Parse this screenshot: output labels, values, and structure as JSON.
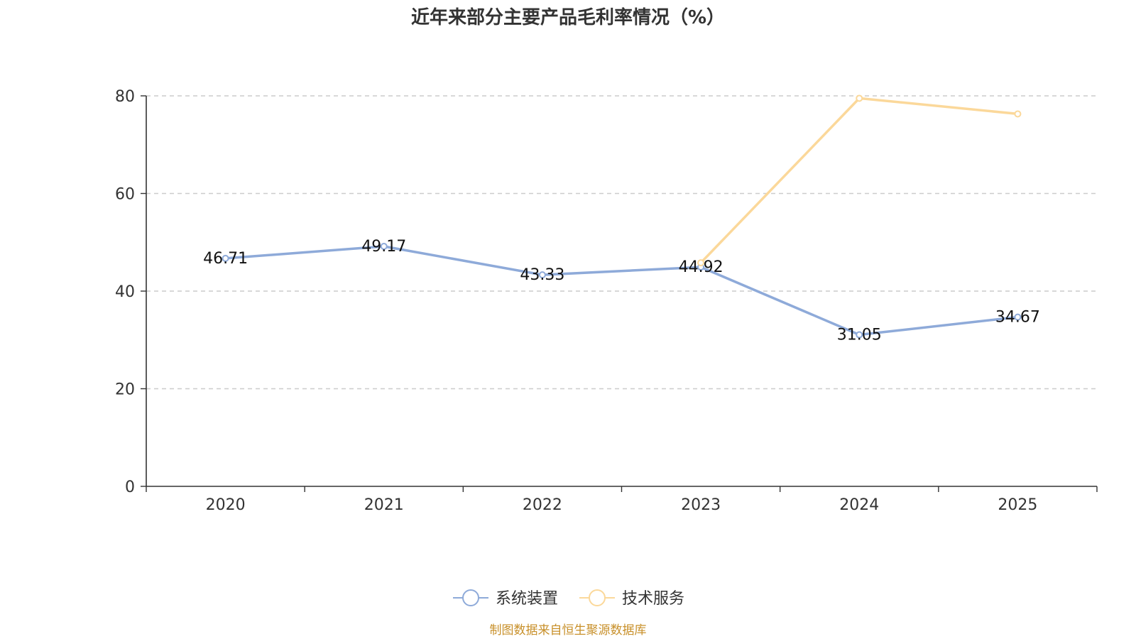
{
  "chart_data": {
    "type": "line",
    "title": "近年来部分主要产品毛利率情况（%）",
    "categories": [
      "2020",
      "2021",
      "2022",
      "2023",
      "2024",
      "2025"
    ],
    "ylim": [
      0,
      80
    ],
    "yticks": [
      0,
      20,
      40,
      60,
      80
    ],
    "grid": true,
    "legend_position": "bottom-center",
    "series": [
      {
        "name": "系统装置",
        "color": "#8eaad9",
        "values": [
          46.71,
          49.17,
          43.33,
          44.92,
          31.05,
          34.67
        ],
        "labels": [
          "46.71",
          "49.17",
          "43.33",
          "44.92",
          "31.05",
          "34.67"
        ]
      },
      {
        "name": "技术服务",
        "color": "#fbd89a",
        "values": [
          null,
          null,
          null,
          45.8,
          79.5,
          76.3
        ]
      }
    ]
  },
  "source_note": "制图数据来自恒生聚源数据库"
}
